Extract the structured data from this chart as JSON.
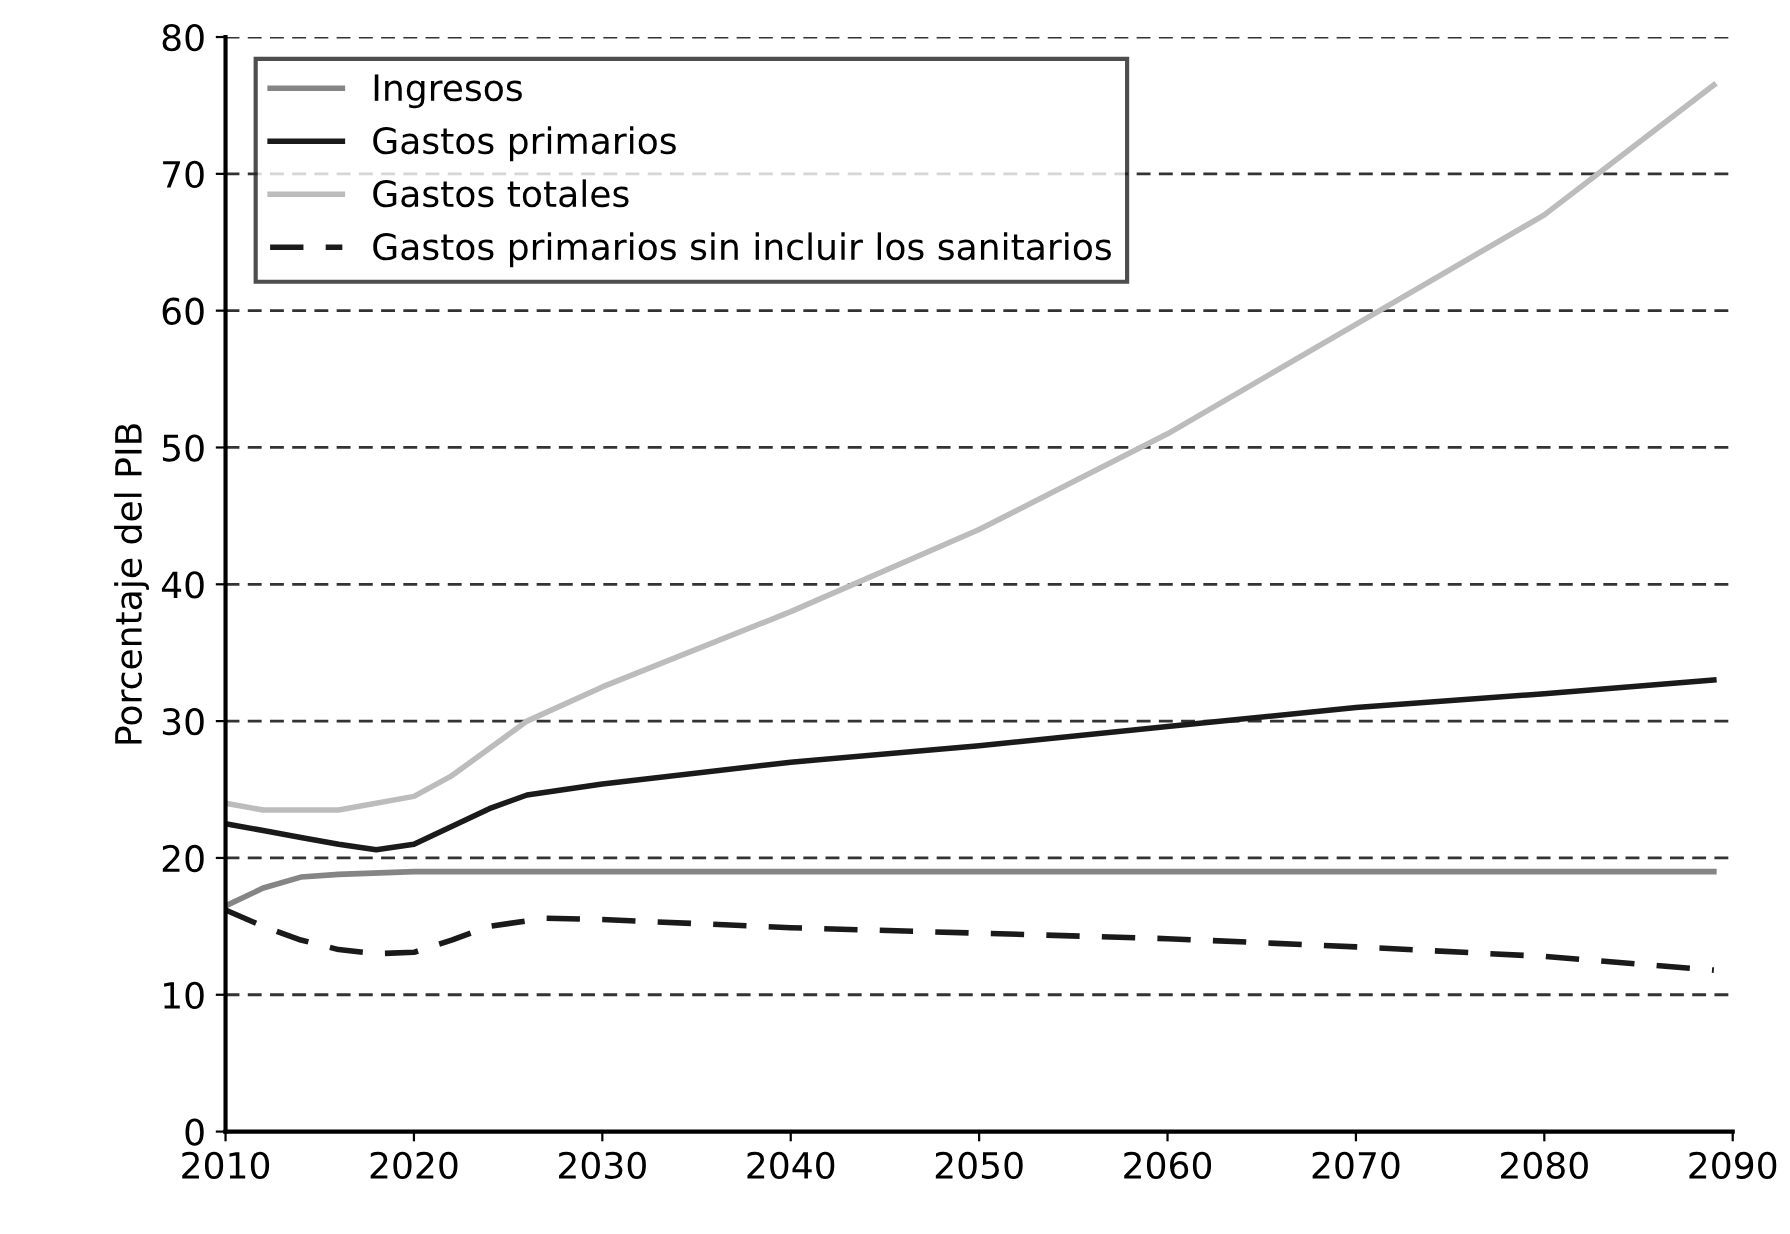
{
  "chart_data": {
    "type": "line",
    "ylabel": "Porcentaje del PIB",
    "xlim": [
      2010,
      2090
    ],
    "xticks": [
      2010,
      2020,
      2030,
      2040,
      2050,
      2060,
      2070,
      2080,
      2090
    ],
    "ylim": [
      0,
      80
    ],
    "yticks": [
      0,
      10,
      20,
      30,
      40,
      50,
      60,
      70,
      80
    ],
    "grid": "y",
    "legend": "top left",
    "series": [
      {
        "name": "Ingresos",
        "color": "#858585",
        "line_style": "solid",
        "x": [
          2010,
          2012,
          2014,
          2016,
          2020,
          2089
        ],
        "values": [
          16.5,
          17.8,
          18.6,
          18.8,
          19.0,
          19.0
        ]
      },
      {
        "name": "Gastos primarios",
        "color": "#1a1a1a",
        "line_style": "solid",
        "x": [
          2010,
          2012,
          2014,
          2016,
          2018,
          2020,
          2022,
          2024,
          2026,
          2030,
          2040,
          2050,
          2060,
          2070,
          2080,
          2089
        ],
        "values": [
          22.5,
          22.0,
          21.5,
          21.0,
          20.6,
          21.0,
          22.3,
          23.6,
          24.6,
          25.4,
          27.0,
          28.2,
          29.6,
          31.0,
          32.0,
          33.0
        ]
      },
      {
        "name": "Gastos totales",
        "color": "#bcbcbc",
        "line_style": "solid",
        "x": [
          2010,
          2012,
          2016,
          2020,
          2022,
          2024,
          2026,
          2030,
          2040,
          2050,
          2060,
          2070,
          2080,
          2089
        ],
        "values": [
          24.0,
          23.5,
          23.5,
          24.5,
          26.0,
          28.0,
          30.0,
          32.5,
          38.0,
          44.0,
          51.0,
          59.0,
          67.0,
          76.5
        ]
      },
      {
        "name": "Gastos primarios sin incluir los sanitarios",
        "color": "#1a1a1a",
        "line_style": "dashed",
        "x": [
          2010,
          2012,
          2014,
          2016,
          2018,
          2020,
          2022,
          2024,
          2027,
          2030,
          2040,
          2050,
          2060,
          2070,
          2080,
          2089
        ],
        "values": [
          16.2,
          15.0,
          14.0,
          13.3,
          13.0,
          13.1,
          14.0,
          15.0,
          15.6,
          15.5,
          14.9,
          14.5,
          14.1,
          13.5,
          12.8,
          11.8
        ]
      }
    ]
  }
}
